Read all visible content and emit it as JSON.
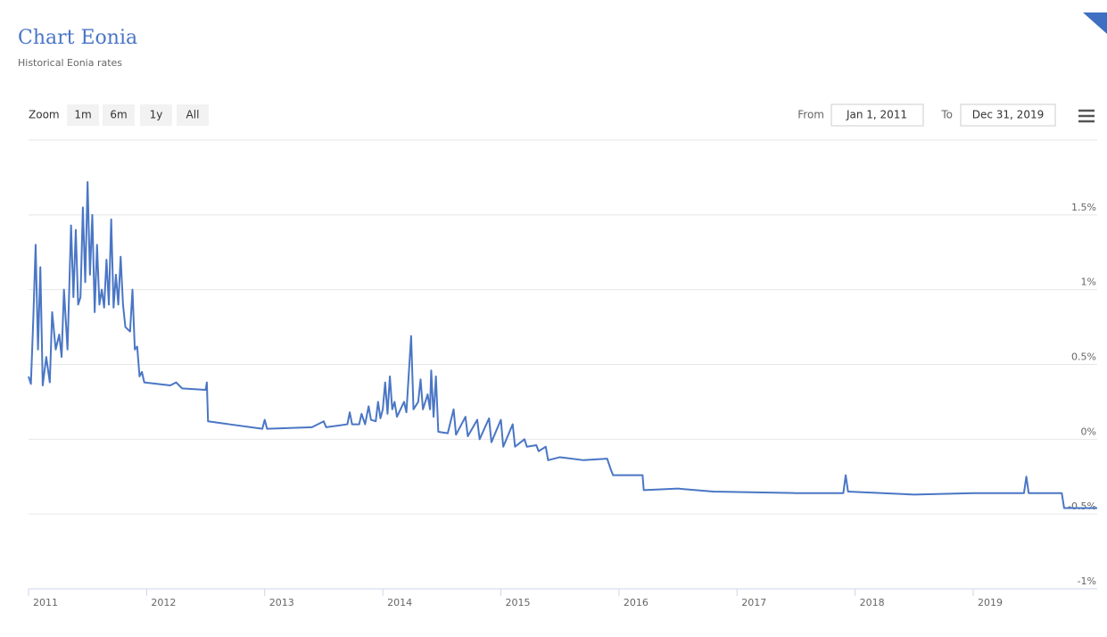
{
  "chart_data": {
    "type": "line",
    "title": "Chart Eonia",
    "subtitle": "Historical Eonia rates",
    "range_selector": {
      "label": "Zoom",
      "buttons": [
        "1m",
        "6m",
        "1y",
        "All"
      ]
    },
    "date_inputs": {
      "from_label": "From",
      "from": "Jan 1, 2011",
      "to_label": "To",
      "to": "Dec 31, 2019"
    },
    "xlim": [
      2011,
      2020.05
    ],
    "xticks": [
      2011,
      2012,
      2013,
      2014,
      2015,
      2016,
      2017,
      2018,
      2019
    ],
    "ylim": [
      -1,
      2
    ],
    "yticks": [
      {
        "value": -1,
        "label": "-1%"
      },
      {
        "value": -0.5,
        "label": "-0.5%"
      },
      {
        "value": 0,
        "label": "0%"
      },
      {
        "value": 0.5,
        "label": "0.5%"
      },
      {
        "value": 1,
        "label": "1%"
      },
      {
        "value": 1.5,
        "label": "1.5%"
      }
    ],
    "grid": true,
    "series": [
      {
        "name": "Eonia",
        "color": "#4a76c5",
        "x": [
          2011.0,
          2011.02,
          2011.04,
          2011.06,
          2011.08,
          2011.1,
          2011.12,
          2011.15,
          2011.18,
          2011.2,
          2011.23,
          2011.26,
          2011.28,
          2011.3,
          2011.33,
          2011.36,
          2011.38,
          2011.4,
          2011.42,
          2011.44,
          2011.46,
          2011.48,
          2011.5,
          2011.52,
          2011.54,
          2011.56,
          2011.58,
          2011.6,
          2011.62,
          2011.64,
          2011.66,
          2011.68,
          2011.7,
          2011.72,
          2011.74,
          2011.76,
          2011.78,
          2011.8,
          2011.82,
          2011.86,
          2011.88,
          2011.9,
          2011.92,
          2011.94,
          2011.96,
          2011.98,
          2012.2,
          2012.25,
          2012.3,
          2012.5,
          2012.51,
          2012.52,
          2012.7,
          2012.98,
          2013.0,
          2013.02,
          2013.4,
          2013.5,
          2013.52,
          2013.7,
          2013.72,
          2013.74,
          2013.8,
          2013.82,
          2013.85,
          2013.88,
          2013.9,
          2013.94,
          2013.96,
          2013.98,
          2014.0,
          2014.02,
          2014.04,
          2014.06,
          2014.08,
          2014.1,
          2014.12,
          2014.15,
          2014.18,
          2014.2,
          2014.24,
          2014.26,
          2014.3,
          2014.32,
          2014.34,
          2014.38,
          2014.4,
          2014.41,
          2014.43,
          2014.45,
          2014.47,
          2014.55,
          2014.6,
          2014.62,
          2014.7,
          2014.72,
          2014.8,
          2014.82,
          2014.9,
          2014.92,
          2015.0,
          2015.02,
          2015.1,
          2015.12,
          2015.2,
          2015.22,
          2015.3,
          2015.32,
          2015.38,
          2015.4,
          2015.5,
          2015.7,
          2015.9,
          2015.93,
          2015.95,
          2016.2,
          2016.21,
          2016.5,
          2016.8,
          2017.5,
          2017.9,
          2017.92,
          2017.94,
          2018.5,
          2019.0,
          2019.43,
          2019.45,
          2019.47,
          2019.75,
          2019.77,
          2020.05
        ],
        "values": [
          0.42,
          0.37,
          0.8,
          1.3,
          0.6,
          1.15,
          0.36,
          0.55,
          0.38,
          0.85,
          0.6,
          0.7,
          0.55,
          1.0,
          0.6,
          1.43,
          0.95,
          1.4,
          0.9,
          0.95,
          1.55,
          1.05,
          1.72,
          1.1,
          1.5,
          0.85,
          1.3,
          0.9,
          1.0,
          0.88,
          1.2,
          0.9,
          1.47,
          0.88,
          1.1,
          0.9,
          1.22,
          0.9,
          0.75,
          0.72,
          1.0,
          0.6,
          0.62,
          0.42,
          0.45,
          0.38,
          0.36,
          0.38,
          0.34,
          0.33,
          0.38,
          0.12,
          0.1,
          0.07,
          0.13,
          0.07,
          0.08,
          0.12,
          0.08,
          0.1,
          0.18,
          0.1,
          0.1,
          0.17,
          0.1,
          0.22,
          0.13,
          0.12,
          0.25,
          0.14,
          0.2,
          0.38,
          0.17,
          0.42,
          0.2,
          0.25,
          0.15,
          0.2,
          0.25,
          0.18,
          0.69,
          0.2,
          0.25,
          0.4,
          0.2,
          0.3,
          0.2,
          0.46,
          0.15,
          0.42,
          0.05,
          0.04,
          0.2,
          0.03,
          0.15,
          0.02,
          0.13,
          0.0,
          0.14,
          -0.02,
          0.13,
          -0.05,
          0.1,
          -0.05,
          0.0,
          -0.05,
          -0.04,
          -0.08,
          -0.05,
          -0.14,
          -0.12,
          -0.14,
          -0.13,
          -0.2,
          -0.24,
          -0.24,
          -0.34,
          -0.33,
          -0.35,
          -0.36,
          -0.36,
          -0.24,
          -0.35,
          -0.37,
          -0.36,
          -0.36,
          -0.25,
          -0.36,
          -0.36,
          -0.46,
          -0.46
        ]
      }
    ]
  }
}
